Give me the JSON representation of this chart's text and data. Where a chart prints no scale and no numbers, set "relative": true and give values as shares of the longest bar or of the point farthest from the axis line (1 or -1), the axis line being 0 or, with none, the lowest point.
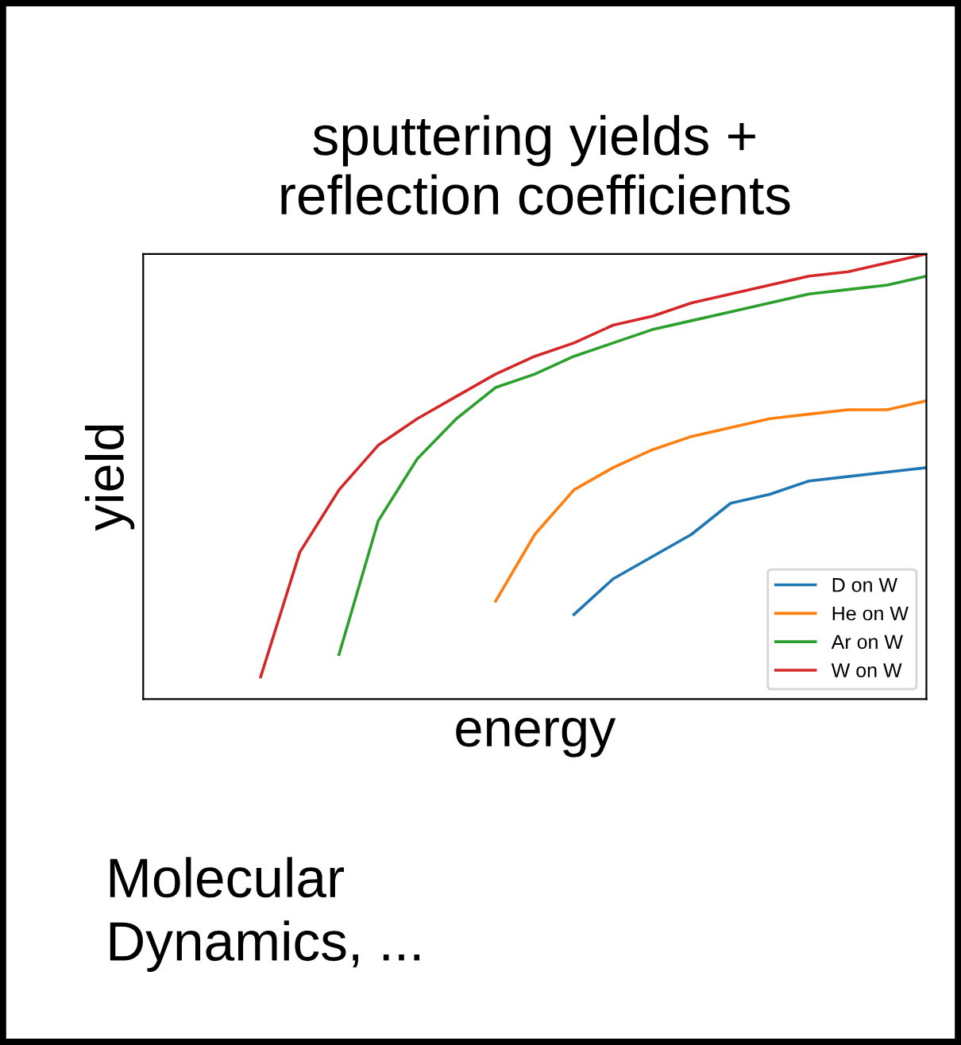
{
  "chart_data": {
    "type": "line",
    "title": "sputtering yields +\nreflection coefficients",
    "xlabel": "energy",
    "ylabel": "yield",
    "relative": true,
    "legend": "bottom right",
    "annotations": [
      "Molecular\nDynamics, ..."
    ],
    "categories": [
      null,
      null,
      null,
      null,
      null,
      null,
      null,
      null,
      null,
      null,
      null,
      null,
      null,
      null,
      null,
      null,
      null,
      null,
      null,
      null,
      null
    ],
    "series": [
      {
        "name": "D on W",
        "color": "#1f77b4",
        "values": [
          null,
          null,
          null,
          null,
          null,
          null,
          null,
          null,
          null,
          null,
          null,
          0.19,
          0.27,
          0.32,
          0.37,
          0.44,
          0.46,
          0.49,
          0.5,
          0.51,
          0.52
        ]
      },
      {
        "name": "He on W",
        "color": "#ff7f0e",
        "values": [
          null,
          null,
          null,
          null,
          null,
          null,
          null,
          null,
          null,
          0.22,
          0.37,
          0.47,
          0.52,
          0.56,
          0.59,
          0.61,
          0.63,
          0.64,
          0.65,
          0.65,
          0.67
        ]
      },
      {
        "name": "Ar on W",
        "color": "#2ca02c",
        "values": [
          null,
          null,
          null,
          null,
          null,
          0.1,
          0.4,
          0.54,
          0.63,
          0.7,
          0.73,
          0.77,
          0.8,
          0.83,
          0.85,
          0.87,
          0.89,
          0.91,
          0.92,
          0.93,
          0.95
        ]
      },
      {
        "name": "W on W",
        "color": "#d62728",
        "values": [
          null,
          null,
          null,
          0.05,
          0.33,
          0.47,
          0.57,
          0.63,
          0.68,
          0.73,
          0.77,
          0.8,
          0.84,
          0.86,
          0.89,
          0.91,
          0.93,
          0.95,
          0.96,
          0.98,
          1
        ]
      }
    ]
  }
}
